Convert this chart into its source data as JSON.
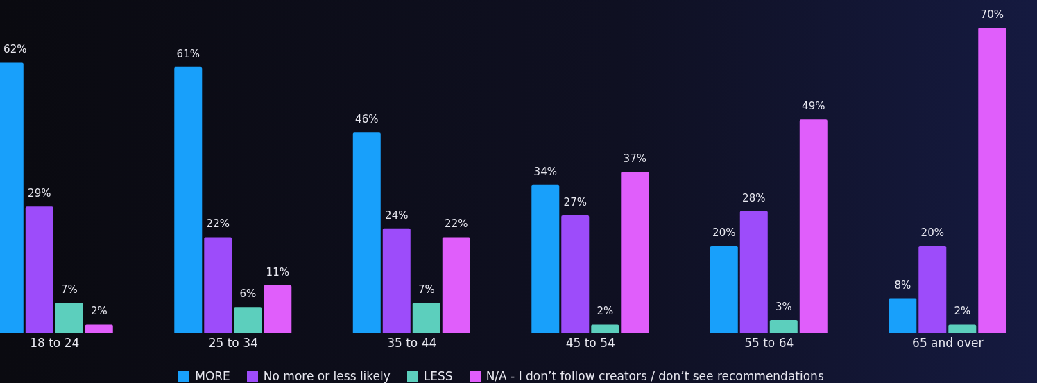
{
  "chart_data": {
    "type": "bar",
    "categories": [
      "18 to 24",
      "25 to 34",
      "35 to 44",
      "45 to 54",
      "55 to 64",
      "65 and over"
    ],
    "series": [
      {
        "name": "MORE",
        "color": "#18a0fb",
        "values": [
          62,
          61,
          46,
          34,
          20,
          8
        ],
        "value_labels": [
          "62%",
          "61%",
          "46%",
          "34%",
          "20%",
          "8%"
        ]
      },
      {
        "name": "No more or less likely",
        "color": "#9d4cfa",
        "values": [
          29,
          22,
          24,
          27,
          28,
          20
        ],
        "value_labels": [
          "29%",
          "22%",
          "24%",
          "27%",
          "28%",
          "20%"
        ]
      },
      {
        "name": "LESS",
        "color": "#5ccfbd",
        "values": [
          7,
          6,
          7,
          2,
          3,
          2
        ],
        "value_labels": [
          "7%",
          "6%",
          "7%",
          "2%",
          "3%",
          "2%"
        ]
      },
      {
        "name": "N/A - I don’t follow creators / don’t see recommendations",
        "color": "#e05efb",
        "values": [
          2,
          11,
          22,
          37,
          49,
          70
        ],
        "value_labels": [
          "2%",
          "11%",
          "22%",
          "37%",
          "49%",
          "70%"
        ]
      }
    ],
    "legend": "bottom",
    "grid": false
  }
}
